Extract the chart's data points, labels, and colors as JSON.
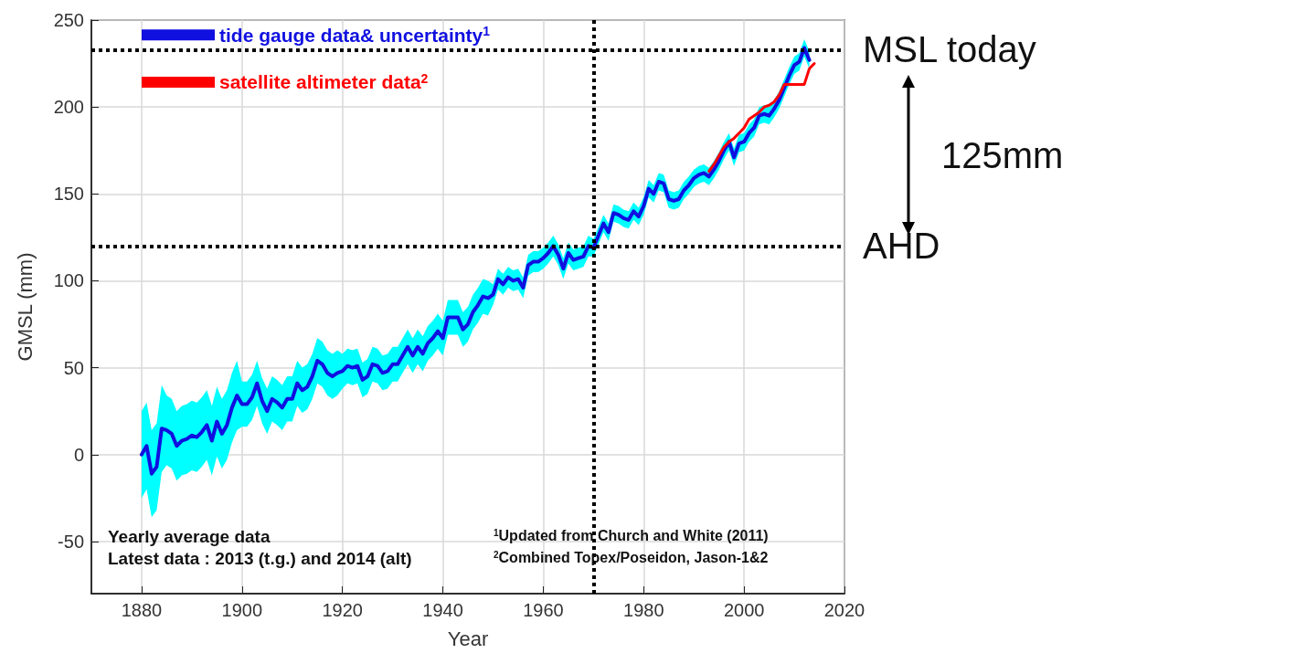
{
  "chart_data": {
    "type": "line",
    "xlabel": "Year",
    "ylabel": "GMSL (mm)",
    "xlim": [
      1870,
      2020
    ],
    "xticks": [
      1880,
      1900,
      1920,
      1940,
      1960,
      1980,
      2000,
      2020
    ],
    "ylim": [
      -80,
      250
    ],
    "yticks": [
      -50,
      0,
      50,
      100,
      150,
      200,
      250
    ],
    "grid": true,
    "legend": "top left",
    "marker": "none",
    "series": [
      {
        "name": "tide gauge data& uncertainty$^{1}$",
        "color": "#1010e0",
        "x": [
          1880,
          1881,
          1882,
          1883,
          1884,
          1885,
          1886,
          1887,
          1888,
          1889,
          1890,
          1891,
          1892,
          1893,
          1894,
          1895,
          1896,
          1897,
          1898,
          1899,
          1900,
          1901,
          1902,
          1903,
          1904,
          1905,
          1906,
          1907,
          1908,
          1909,
          1910,
          1911,
          1912,
          1913,
          1914,
          1915,
          1916,
          1917,
          1918,
          1919,
          1920,
          1921,
          1922,
          1923,
          1924,
          1925,
          1926,
          1927,
          1928,
          1929,
          1930,
          1931,
          1932,
          1933,
          1934,
          1935,
          1936,
          1937,
          1938,
          1939,
          1940,
          1941,
          1942,
          1943,
          1944,
          1945,
          1946,
          1947,
          1948,
          1949,
          1950,
          1951,
          1952,
          1953,
          1954,
          1955,
          1956,
          1957,
          1958,
          1959,
          1960,
          1961,
          1962,
          1963,
          1964,
          1965,
          1966,
          1967,
          1968,
          1969,
          1970,
          1971,
          1972,
          1973,
          1974,
          1975,
          1976,
          1977,
          1978,
          1979,
          1980,
          1981,
          1982,
          1983,
          1984,
          1985,
          1986,
          1987,
          1988,
          1989,
          1990,
          1991,
          1992,
          1993,
          1994,
          1995,
          1996,
          1997,
          1998,
          1999,
          2000,
          2001,
          2002,
          2003,
          2004,
          2005,
          2006,
          2007,
          2008,
          2009,
          2010,
          2011,
          2012,
          2013
        ],
        "values": [
          0,
          5,
          -11,
          -7,
          15,
          14,
          12,
          5,
          8,
          9,
          11,
          10,
          13,
          17,
          8,
          19,
          12,
          17,
          27,
          34,
          29,
          29,
          33,
          41,
          31,
          25,
          32,
          30,
          27,
          32,
          32,
          41,
          37,
          39,
          45,
          54,
          52,
          47,
          45,
          47,
          48,
          51,
          50,
          51,
          43,
          45,
          52,
          51,
          47,
          48,
          52,
          52,
          57,
          62,
          57,
          62,
          58,
          64,
          67,
          71,
          67,
          79,
          79,
          79,
          72,
          75,
          82,
          86,
          91,
          90,
          92,
          101,
          98,
          102,
          100,
          101,
          96,
          109,
          111,
          111,
          113,
          116,
          120,
          115,
          107,
          116,
          112,
          113,
          114,
          120,
          119,
          126,
          133,
          128,
          139,
          138,
          136,
          135,
          140,
          137,
          143,
          153,
          150,
          157,
          156,
          147,
          146,
          147,
          152,
          155,
          159,
          161,
          162,
          160,
          164,
          169,
          175,
          180,
          171,
          179,
          180,
          185,
          188,
          195,
          196,
          195,
          199,
          204,
          211,
          218,
          224,
          226,
          234,
          227
        ],
        "lower": [
          -25,
          -20,
          -36,
          -32,
          -10,
          -6,
          -8,
          -15,
          -12,
          -11,
          -9,
          -10,
          -7,
          -3,
          -12,
          -1,
          -8,
          -3,
          7,
          14,
          16,
          16,
          20,
          28,
          18,
          12,
          19,
          17,
          14,
          19,
          19,
          28,
          24,
          26,
          32,
          41,
          39,
          34,
          32,
          34,
          38,
          41,
          40,
          41,
          33,
          35,
          42,
          41,
          37,
          38,
          42,
          42,
          47,
          52,
          47,
          52,
          48,
          54,
          57,
          61,
          57,
          69,
          69,
          69,
          62,
          65,
          72,
          76,
          81,
          80,
          86,
          95,
          92,
          96,
          94,
          95,
          90,
          103,
          105,
          105,
          107,
          110,
          114,
          109,
          101,
          110,
          106,
          107,
          108,
          114,
          114,
          121,
          128,
          123,
          134,
          133,
          131,
          130,
          135,
          132,
          138,
          148,
          145,
          152,
          151,
          142,
          141,
          142,
          147,
          150,
          154,
          156,
          157,
          155,
          159,
          164,
          170,
          175,
          166,
          174,
          175,
          180,
          183,
          190,
          191,
          190,
          194,
          199,
          206,
          213,
          219,
          221,
          229,
          222
        ],
        "upper": [
          25,
          30,
          14,
          18,
          40,
          34,
          32,
          25,
          28,
          29,
          31,
          30,
          33,
          37,
          28,
          39,
          32,
          37,
          47,
          54,
          42,
          42,
          46,
          54,
          44,
          38,
          45,
          43,
          40,
          45,
          45,
          54,
          50,
          52,
          58,
          67,
          65,
          60,
          58,
          60,
          58,
          61,
          60,
          61,
          53,
          55,
          62,
          61,
          57,
          58,
          62,
          62,
          67,
          72,
          67,
          72,
          68,
          74,
          77,
          81,
          77,
          89,
          89,
          89,
          82,
          85,
          92,
          96,
          101,
          100,
          98,
          107,
          104,
          108,
          106,
          107,
          102,
          115,
          117,
          117,
          119,
          122,
          126,
          121,
          113,
          122,
          118,
          119,
          120,
          126,
          124,
          131,
          138,
          133,
          144,
          143,
          141,
          140,
          145,
          142,
          148,
          158,
          155,
          162,
          161,
          152,
          151,
          152,
          157,
          160,
          164,
          166,
          167,
          165,
          169,
          174,
          180,
          185,
          176,
          184,
          185,
          190,
          193,
          200,
          201,
          200,
          204,
          209,
          216,
          223,
          229,
          231,
          239,
          232
        ]
      },
      {
        "name": "satellite altimeter data$^{2}$",
        "color": "#ff0000",
        "x": [
          1993,
          1994,
          1995,
          1996,
          1997,
          1998,
          1999,
          2000,
          2001,
          2002,
          2003,
          2004,
          2005,
          2006,
          2007,
          2008,
          2009,
          2010,
          2011,
          2012,
          2013,
          2014
        ],
        "values": [
          163,
          167,
          172,
          177,
          180,
          182,
          185,
          188,
          193,
          195,
          197,
          200,
          201,
          203,
          207,
          213,
          213,
          213,
          213,
          213,
          222,
          225
        ]
      }
    ],
    "ref_lines": [
      {
        "axis": "y",
        "value": 233,
        "label": "MSL today"
      },
      {
        "axis": "y",
        "value": 120,
        "label": "AHD"
      },
      {
        "axis": "x",
        "value": 1970,
        "label": null
      }
    ],
    "annotations": [
      "Yearly average data",
      "Latest data : 2013 (t.g.) and 2014 (alt)",
      "$^{1}$Updated from Church and White (2011)",
      "$^{2}$Combined Topex/Poseidon, Jason-1&2",
      "125mm"
    ]
  }
}
